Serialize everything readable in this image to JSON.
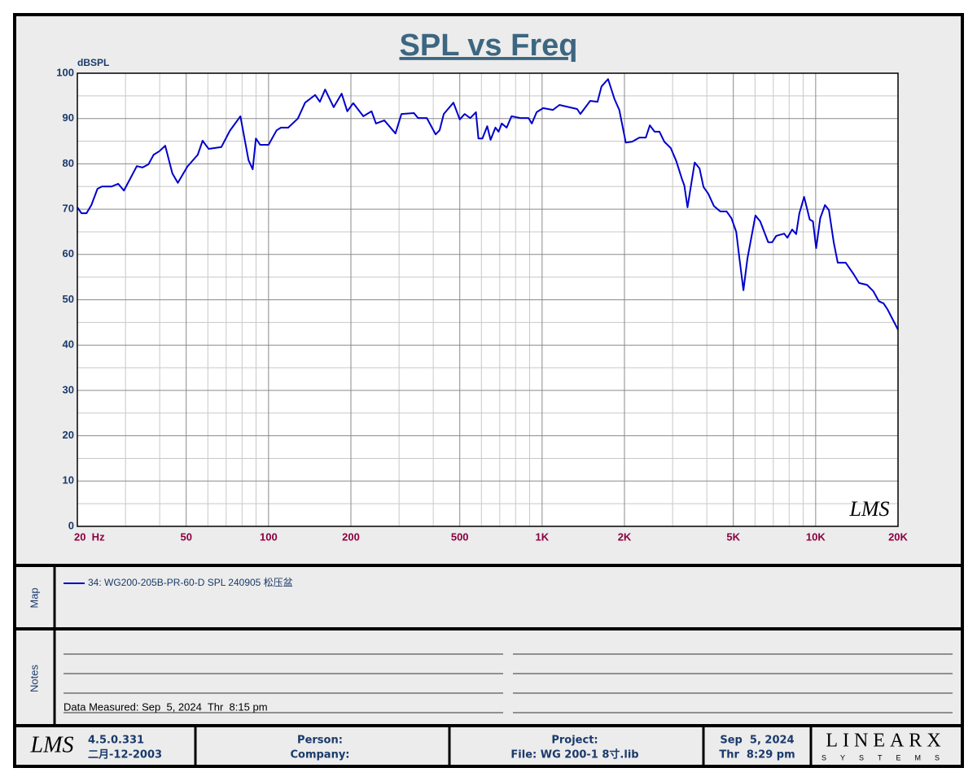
{
  "chart_data": {
    "type": "line",
    "title": "SPL vs Freq",
    "y_label": "dBSPL",
    "xscale": "log",
    "grid": true,
    "watermark": "LMS",
    "x": [
      20,
      20.7,
      21.6,
      22.5,
      23.7,
      24.6,
      26.7,
      28.2,
      29.6,
      33,
      34.6,
      36.4,
      38,
      39.9,
      41.9,
      44.5,
      46.6,
      50.5,
      55.1,
      57.4,
      60.4,
      67.2,
      72.2,
      78.9,
      84.5,
      87.5,
      89.9,
      93.2,
      100,
      107,
      111,
      118,
      128,
      136,
      148,
      154,
      161,
      173,
      185,
      194,
      204,
      222,
      238,
      247,
      265,
      291,
      306,
      340,
      352,
      379,
      408,
      422,
      437,
      474,
      500,
      521,
      546,
      573,
      585,
      605,
      630,
      648,
      675,
      693,
      712,
      742,
      773,
      833,
      892,
      917,
      955,
      1009,
      1095,
      1157,
      1255,
      1343,
      1380,
      1499,
      1594,
      1649,
      1742,
      1839,
      1915,
      2022,
      2135,
      2268,
      2394,
      2476,
      2578,
      2685,
      2796,
      2952,
      3094,
      3243,
      3311,
      3400,
      3612,
      3762,
      3890,
      4051,
      4245,
      4480,
      4727,
      4921,
      5124,
      5264,
      5444,
      5630,
      6022,
      6270,
      6706,
      6936,
      7174,
      7671,
      7880,
      8204,
      8486,
      8718,
      9074,
      9512,
      9774,
      10040,
      10390,
      10815,
      11180,
      11640,
      12040,
      12870,
      13750,
      14410,
      15400,
      16240,
      17010,
      17710,
      18300,
      20000
    ],
    "series": [
      {
        "name": "34: WG200-205B-PR-60-D SPL 240905 松压盆",
        "color": "#0000cc",
        "values": [
          70.4,
          69.1,
          69.1,
          70.9,
          74.5,
          75,
          75,
          75.6,
          74.1,
          79.5,
          79.2,
          79.9,
          82,
          82.8,
          84,
          77.9,
          75.8,
          79.4,
          82,
          85.1,
          83.3,
          83.7,
          87.3,
          90.5,
          80.8,
          78.8,
          85.6,
          84.2,
          84.2,
          87.4,
          88,
          88,
          90,
          93.5,
          95.2,
          93.7,
          96.4,
          92.5,
          95.5,
          91.6,
          93.4,
          90.5,
          91.6,
          88.9,
          89.6,
          86.7,
          91,
          91.2,
          90.1,
          90.1,
          86.5,
          87.4,
          91,
          93.5,
          89.8,
          91,
          90.1,
          91.4,
          85.6,
          85.6,
          88.3,
          85.3,
          88,
          87.1,
          88.9,
          88,
          90.5,
          90.1,
          90.1,
          88.9,
          91.4,
          92.3,
          91.9,
          93,
          92.5,
          92.1,
          91,
          93.9,
          93.7,
          97.1,
          98.7,
          94.3,
          91.9,
          84.7,
          84.9,
          85.8,
          85.8,
          88.5,
          87.1,
          87.1,
          84.9,
          83.5,
          80.6,
          76.7,
          75.2,
          70.4,
          80.3,
          79,
          74.9,
          73.4,
          70.7,
          69.5,
          69.5,
          68,
          65,
          59.1,
          52.1,
          59.1,
          68.6,
          67.3,
          62.7,
          62.7,
          64.1,
          64.6,
          63.7,
          65.5,
          64.5,
          69.1,
          72.7,
          67.7,
          67.3,
          61.4,
          68,
          70.9,
          69.8,
          62.7,
          58.2,
          58.2,
          55.7,
          53.7,
          53.3,
          51.9,
          49.7,
          49.2,
          47.9,
          43.4
        ]
      }
    ],
    "xlim": [
      20,
      20000
    ],
    "ylim": [
      0,
      100
    ],
    "xticks": [
      {
        "value": 20,
        "label": "20  Hz"
      },
      50,
      100,
      200,
      500,
      {
        "value": 1000,
        "label": "1K"
      },
      {
        "value": 2000,
        "label": "2K"
      },
      {
        "value": 5000,
        "label": "5K"
      },
      {
        "value": 10000,
        "label": "10K"
      },
      {
        "value": 20000,
        "label": "20K"
      }
    ],
    "yticks": [
      0,
      10,
      20,
      30,
      40,
      50,
      60,
      70,
      80,
      90,
      100
    ],
    "x_minor_grid": [
      30,
      40,
      60,
      70,
      80,
      90,
      300,
      400,
      600,
      700,
      800,
      900,
      3000,
      4000,
      6000,
      7000,
      8000,
      9000
    ],
    "y_minor_grid": [
      5,
      15,
      25,
      35,
      45,
      55,
      65,
      75,
      85,
      95
    ]
  },
  "map": {
    "title": "Map"
  },
  "notes": {
    "title": "Notes",
    "data_measured": "Data Measured: Sep  5, 2024  Thr  8:15 pm"
  },
  "footer": {
    "logo": "LMS",
    "version": "4.5.0.331",
    "build_date": "二月-12-2003",
    "person": "Person:",
    "company": "Company:",
    "project": "Project:",
    "file": "File: WG 200-1 8寸.lib",
    "date": "Sep  5, 2024",
    "time": "Thr  8:29 pm",
    "brand": "LINEARX",
    "brand_sub": "SYSTEMS"
  }
}
